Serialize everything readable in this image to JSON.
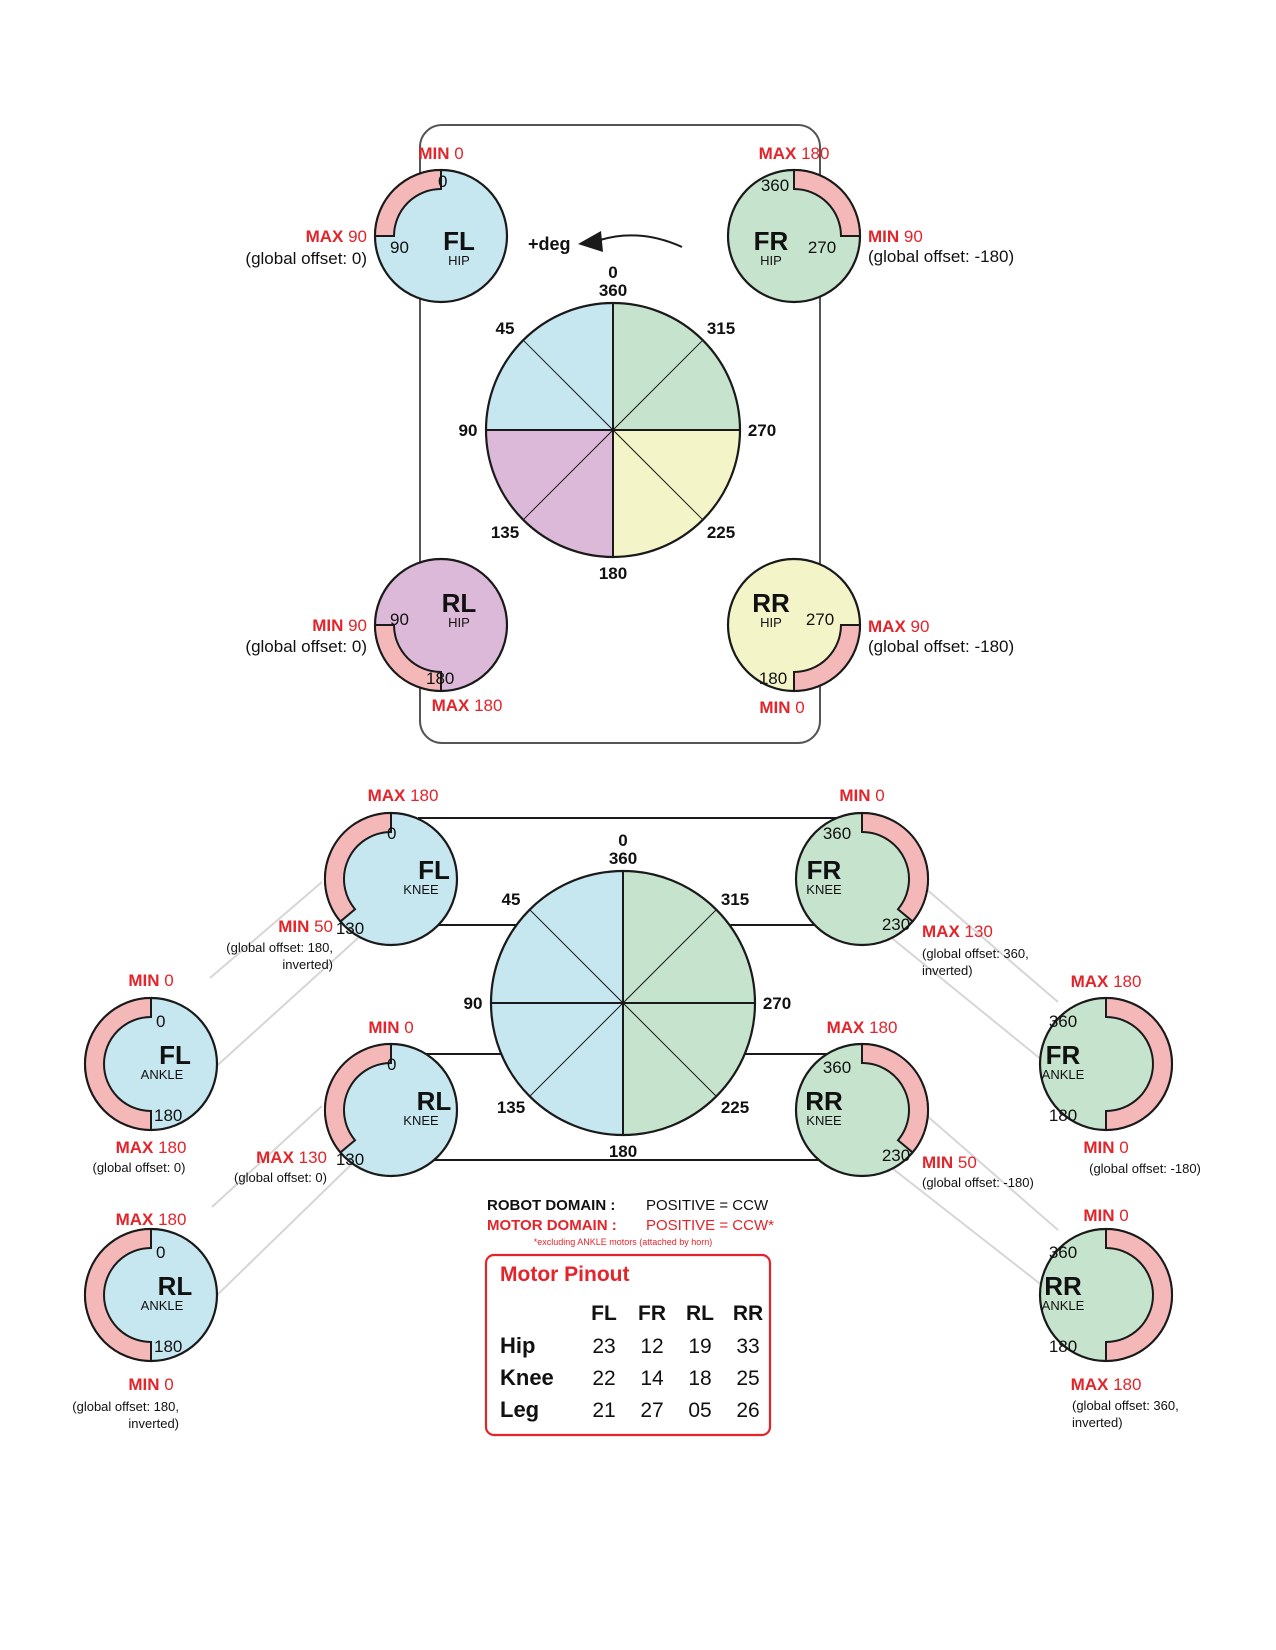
{
  "colors": {
    "accent_red": "#e3242b",
    "range_pink": "#f4b8b8",
    "fill_blue": "#c6e6f0",
    "fill_green": "#c5e3cd",
    "fill_purple": "#dcb9d8",
    "fill_yellow": "#f3f4c8",
    "stroke": "#1a1a1a",
    "link_gray": "#d6d6d6"
  },
  "hip_dial": {
    "direction_label": "+deg",
    "angle_labels": {
      "a0": "0",
      "a360": "360",
      "a45": "45",
      "a315": "315",
      "a90": "90",
      "a270": "270",
      "a135": "135",
      "a225": "225",
      "a180": "180"
    }
  },
  "knee_dial": {
    "angle_labels": {
      "a0": "0",
      "a360": "360",
      "a45": "45",
      "a315": "315",
      "a90": "90",
      "a270": "270",
      "a135": "135",
      "a225": "225",
      "a180": "180"
    }
  },
  "motors": [
    {
      "id": "fl-hip",
      "name": "FL",
      "joint": "HIP",
      "fill": "blue",
      "range_start_deg": 0,
      "range_end_deg": 90,
      "inner_labels": [
        "0",
        "90"
      ],
      "limits": [
        {
          "key": "MIN",
          "value": "0"
        },
        {
          "key": "MAX",
          "value": "90"
        }
      ],
      "offset_lines": [
        "(global offset: 0)"
      ]
    },
    {
      "id": "fr-hip",
      "name": "FR",
      "joint": "HIP",
      "fill": "green",
      "range_start_deg": 270,
      "range_end_deg": 360,
      "inner_labels": [
        "360",
        "270"
      ],
      "limits": [
        {
          "key": "MAX",
          "value": "180"
        },
        {
          "key": "MIN",
          "value": "90"
        }
      ],
      "offset_lines": [
        "(global offset: -180)"
      ]
    },
    {
      "id": "rl-hip",
      "name": "RL",
      "joint": "HIP",
      "fill": "purple",
      "range_start_deg": 90,
      "range_end_deg": 180,
      "inner_labels": [
        "90",
        "180"
      ],
      "limits": [
        {
          "key": "MIN",
          "value": "90"
        },
        {
          "key": "MAX",
          "value": "180"
        }
      ],
      "offset_lines": [
        "(global offset: 0)"
      ]
    },
    {
      "id": "rr-hip",
      "name": "RR",
      "joint": "HIP",
      "fill": "yellow",
      "range_start_deg": 180,
      "range_end_deg": 270,
      "inner_labels": [
        "270",
        "180"
      ],
      "limits": [
        {
          "key": "MAX",
          "value": "90"
        },
        {
          "key": "MIN",
          "value": "0"
        }
      ],
      "offset_lines": [
        "(global offset: -180)"
      ]
    },
    {
      "id": "fl-knee",
      "name": "FL",
      "joint": "KNEE",
      "fill": "blue",
      "range_start_deg": 0,
      "range_end_deg": 130,
      "inner_labels": [
        "0",
        "130"
      ],
      "limits": [
        {
          "key": "MAX",
          "value": "180"
        },
        {
          "key": "MIN",
          "value": "50"
        }
      ],
      "offset_lines": [
        "(global offset: 180,",
        "inverted)"
      ]
    },
    {
      "id": "fr-knee",
      "name": "FR",
      "joint": "KNEE",
      "fill": "green",
      "range_start_deg": 230,
      "range_end_deg": 360,
      "inner_labels": [
        "360",
        "230"
      ],
      "limits": [
        {
          "key": "MIN",
          "value": "0"
        },
        {
          "key": "MAX",
          "value": "130"
        }
      ],
      "offset_lines": [
        "(global offset: 360,",
        "inverted)"
      ]
    },
    {
      "id": "rl-knee",
      "name": "RL",
      "joint": "KNEE",
      "fill": "blue",
      "range_start_deg": 0,
      "range_end_deg": 130,
      "inner_labels": [
        "0",
        "130"
      ],
      "limits": [
        {
          "key": "MIN",
          "value": "0"
        },
        {
          "key": "MAX",
          "value": "130"
        }
      ],
      "offset_lines": [
        "(global offset: 0)"
      ]
    },
    {
      "id": "rr-knee",
      "name": "RR",
      "joint": "KNEE",
      "fill": "green",
      "range_start_deg": 230,
      "range_end_deg": 360,
      "inner_labels": [
        "360",
        "230"
      ],
      "limits": [
        {
          "key": "MAX",
          "value": "180"
        },
        {
          "key": "MIN",
          "value": "50"
        }
      ],
      "offset_lines": [
        "(global offset: -180)"
      ]
    },
    {
      "id": "fl-ankle",
      "name": "FL",
      "joint": "ANKLE",
      "fill": "blue",
      "range_start_deg": 0,
      "range_end_deg": 180,
      "inner_labels": [
        "0",
        "180"
      ],
      "limits": [
        {
          "key": "MIN",
          "value": "0"
        },
        {
          "key": "MAX",
          "value": "180"
        }
      ],
      "offset_lines": [
        "(global offset: 0)"
      ]
    },
    {
      "id": "fr-ankle",
      "name": "FR",
      "joint": "ANKLE",
      "fill": "green",
      "range_start_deg": 180,
      "range_end_deg": 360,
      "inner_labels": [
        "360",
        "180"
      ],
      "limits": [
        {
          "key": "MAX",
          "value": "180"
        },
        {
          "key": "MIN",
          "value": "0"
        }
      ],
      "offset_lines": [
        "(global offset: -180)"
      ]
    },
    {
      "id": "rl-ankle",
      "name": "RL",
      "joint": "ANKLE",
      "fill": "blue",
      "range_start_deg": 0,
      "range_end_deg": 180,
      "inner_labels": [
        "0",
        "180"
      ],
      "limits": [
        {
          "key": "MAX",
          "value": "180"
        },
        {
          "key": "MIN",
          "value": "0"
        }
      ],
      "offset_lines": [
        "(global offset: 180,",
        "inverted)"
      ]
    },
    {
      "id": "rr-ankle",
      "name": "RR",
      "joint": "ANKLE",
      "fill": "green",
      "range_start_deg": 180,
      "range_end_deg": 360,
      "inner_labels": [
        "360",
        "180"
      ],
      "limits": [
        {
          "key": "MIN",
          "value": "0"
        },
        {
          "key": "MAX",
          "value": "180"
        }
      ],
      "offset_lines": [
        "(global offset: 360,",
        "inverted)"
      ]
    }
  ],
  "domains": {
    "robot_label": "ROBOT DOMAIN :",
    "robot_value": "POSITIVE = CCW",
    "motor_label": "MOTOR DOMAIN :",
    "motor_value": "POSITIVE = CCW*",
    "footnote": "*excluding ANKLE motors (attached by horn)"
  },
  "pinout": {
    "title": "Motor Pinout",
    "columns": [
      "FL",
      "FR",
      "RL",
      "RR"
    ],
    "rows": [
      {
        "label": "Hip",
        "values": [
          "23",
          "12",
          "19",
          "33"
        ]
      },
      {
        "label": "Knee",
        "values": [
          "22",
          "14",
          "18",
          "25"
        ]
      },
      {
        "label": "Leg",
        "values": [
          "21",
          "27",
          "05",
          "26"
        ]
      }
    ]
  }
}
